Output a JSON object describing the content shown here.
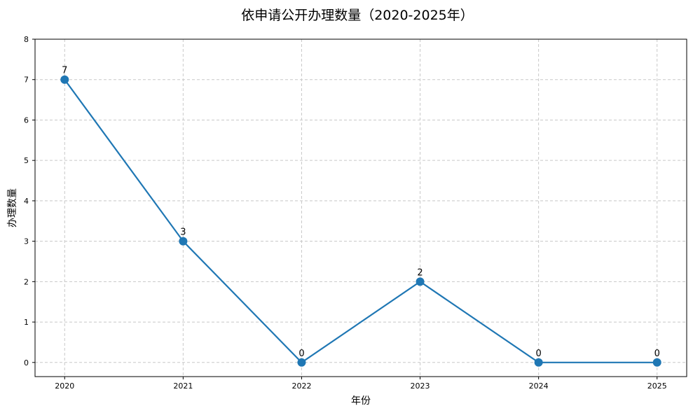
{
  "chart_data": {
    "type": "line",
    "title": "依申请公开办理数量（2020-2025年）",
    "xlabel": "年份",
    "ylabel": "办理数量",
    "categories": [
      "2020",
      "2021",
      "2022",
      "2023",
      "2024",
      "2025"
    ],
    "values": [
      7,
      3,
      0,
      2,
      0,
      0
    ],
    "data_labels": [
      "7",
      "3",
      "0",
      "2",
      "0",
      "0"
    ],
    "yticks": [
      "0",
      "1",
      "2",
      "3",
      "4",
      "5",
      "6",
      "7",
      "8"
    ],
    "ylim": [
      -0.35,
      8
    ],
    "xlim": [
      2019.75,
      2025.25
    ],
    "grid": true,
    "grid_style": "dashed",
    "line_color": "#1f77b4",
    "marker": "circle"
  }
}
